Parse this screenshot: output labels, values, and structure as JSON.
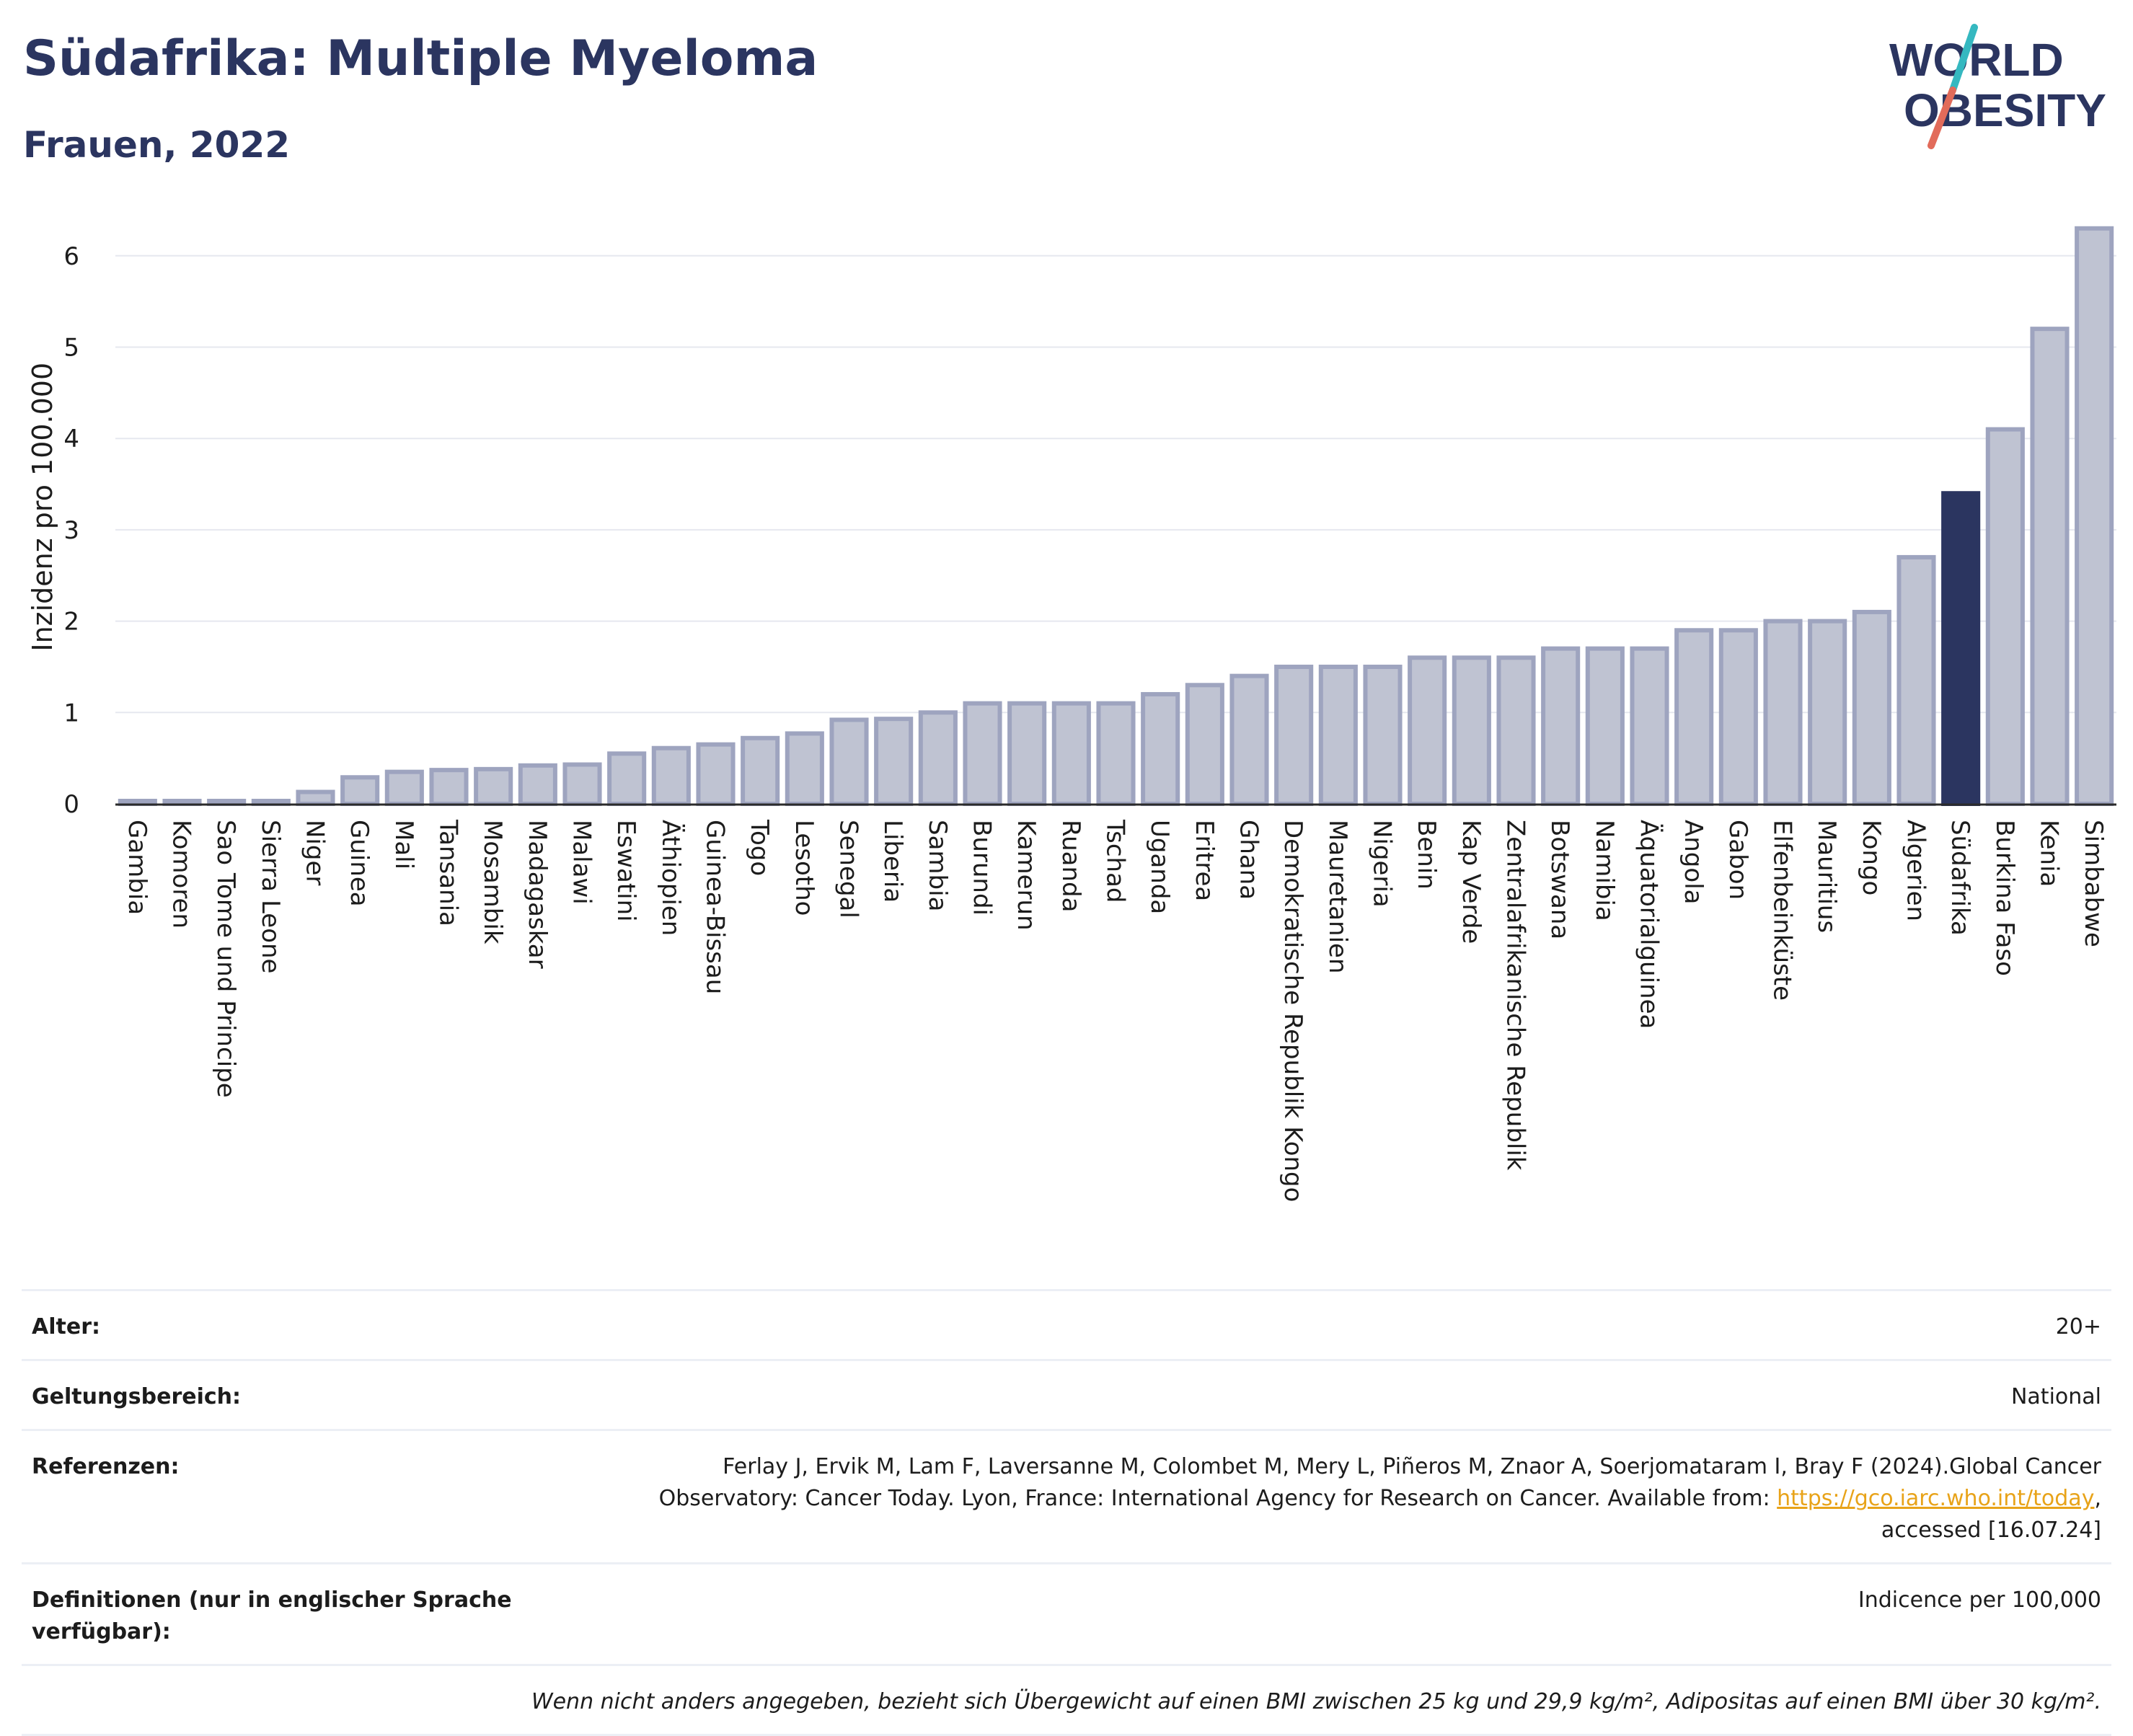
{
  "header": {
    "title": "Südafrika: Multiple Myeloma",
    "subtitle": "Frauen, 2022"
  },
  "logo": {
    "line1": "WORLD",
    "line2": "OBESITY",
    "colors": {
      "text": "#2b3560",
      "slash_top": "#35b8c0",
      "slash_bottom": "#e26b5a"
    }
  },
  "chart_data": {
    "type": "bar",
    "title": "Südafrika: Multiple Myeloma",
    "subtitle": "Frauen, 2022",
    "xlabel": "",
    "ylabel": "Inzidenz pro 100.000",
    "ylim": [
      0,
      6.5
    ],
    "yticks": [
      0,
      1,
      2,
      3,
      4,
      5,
      6
    ],
    "grid": true,
    "highlight": "Südafrika",
    "colors": {
      "bar": "#bfc3d2",
      "bar_border": "#9ea4bf",
      "highlight": "#2b3560",
      "grid": "#e6e8ef"
    },
    "categories": [
      "Gambia",
      "Komoren",
      "Sao Tome und Principe",
      "Sierra Leone",
      "Niger",
      "Guinea",
      "Mali",
      "Tansania",
      "Mosambik",
      "Madagaskar",
      "Malawi",
      "Eswatini",
      "Äthiopien",
      "Guinea-Bissau",
      "Togo",
      "Lesotho",
      "Senegal",
      "Liberia",
      "Sambia",
      "Burundi",
      "Kamerun",
      "Ruanda",
      "Tschad",
      "Uganda",
      "Eritrea",
      "Ghana",
      "Demokratische Republik Kongo",
      "Mauretanien",
      "Nigeria",
      "Benin",
      "Kap Verde",
      "Zentralafrikanische Republik",
      "Botswana",
      "Namibia",
      "Äquatorialguinea",
      "Angola",
      "Gabon",
      "Elfenbeinküste",
      "Mauritius",
      "Kongo",
      "Algerien",
      "Südafrika",
      "Burkina Faso",
      "Kenia",
      "Simbabwe"
    ],
    "values": [
      0.02,
      0.02,
      0.02,
      0.02,
      0.13,
      0.29,
      0.35,
      0.37,
      0.38,
      0.42,
      0.43,
      0.55,
      0.61,
      0.65,
      0.72,
      0.77,
      0.92,
      0.93,
      1.0,
      1.1,
      1.1,
      1.1,
      1.1,
      1.2,
      1.3,
      1.4,
      1.5,
      1.5,
      1.5,
      1.6,
      1.6,
      1.6,
      1.7,
      1.7,
      1.7,
      1.9,
      1.9,
      2.0,
      2.0,
      2.1,
      2.7,
      3.4,
      4.1,
      5.2,
      6.3
    ]
  },
  "info": {
    "age_label": "Alter:",
    "age_value": "20+",
    "scope_label": "Geltungsbereich:",
    "scope_value": "National",
    "ref_label": "Referenzen:",
    "ref_line1": "Ferlay J, Ervik M, Lam F, Laversanne M, Colombet M, Mery L, Piñeros M, Znaor A, Soerjomataram I, Bray F (2024).Global Cancer",
    "ref_line2_pre": "Observatory: Cancer Today. Lyon, France: International Agency for Research on Cancer. Available from: ",
    "ref_link": "https://gco.iarc.who.int/today",
    "ref_line2_post": ",",
    "ref_line3": "accessed [16.07.24]",
    "def_label_1": "Definitionen (nur in englischer Sprache",
    "def_label_2": "verfügbar):",
    "def_value": "Indicence per 100,000",
    "note": "Wenn nicht anders angegeben, bezieht sich Übergewicht auf einen BMI zwischen 25 kg und 29,9 kg/m², Adipositas auf einen BMI über 30 kg/m²."
  }
}
